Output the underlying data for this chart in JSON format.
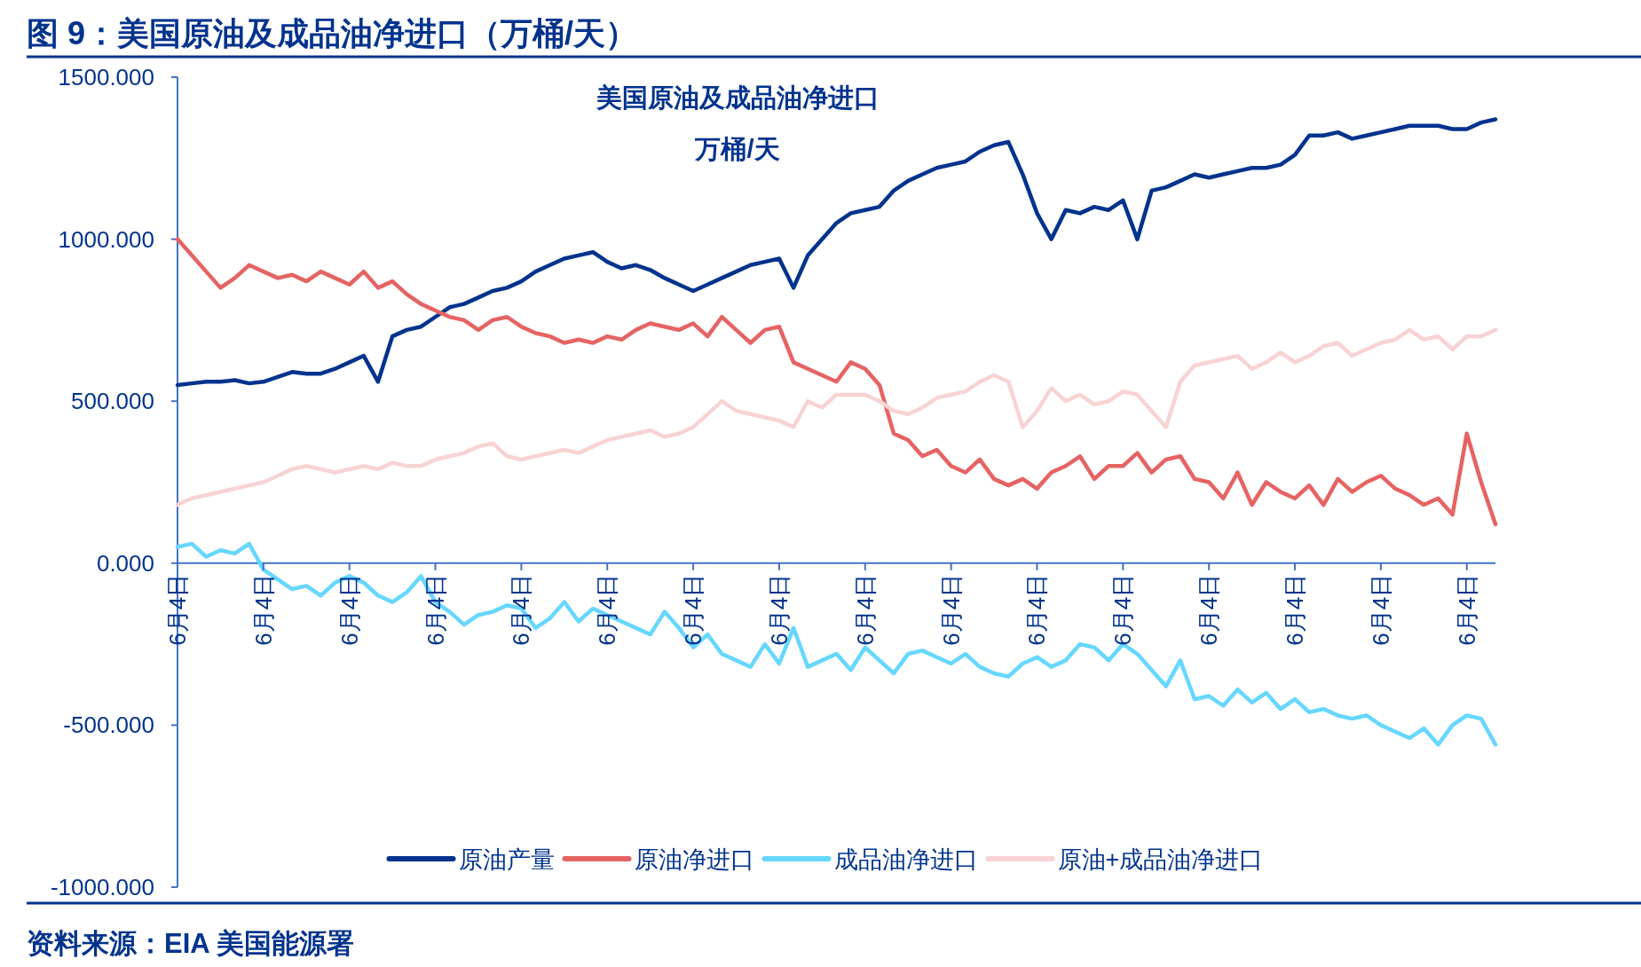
{
  "chart_data": {
    "type": "line",
    "title": "图 9：美国原油及成品油净进口（万桶/天）",
    "subtitle": "美国原油及成品油净进口",
    "ylabel": "万桶/天",
    "annotations": [
      "资料来源：EIA 美国能源署"
    ],
    "categories": [
      "6月4日",
      null,
      null,
      null,
      null,
      null,
      "6月4日",
      null,
      null,
      null,
      null,
      null,
      "6月4日",
      null,
      null,
      null,
      null,
      null,
      "6月4日",
      null,
      null,
      null,
      null,
      null,
      "6月4日",
      null,
      null,
      null,
      null,
      null,
      "6月4日",
      null,
      null,
      null,
      null,
      null,
      "6月4日",
      null,
      null,
      null,
      null,
      null,
      "6月4日",
      null,
      null,
      null,
      null,
      null,
      "6月4日",
      null,
      null,
      null,
      null,
      null,
      "6月4日",
      null,
      null,
      null,
      null,
      null,
      "6月4日",
      null,
      null,
      null,
      null,
      null,
      "6月4日",
      null,
      null,
      null,
      null,
      null,
      "6月4日",
      null,
      null,
      null,
      null,
      null,
      "6月4日",
      null,
      null,
      null,
      null,
      null,
      "6月4日",
      null,
      null,
      null,
      null,
      null,
      "6月4日",
      null,
      null
    ],
    "series": [
      {
        "name": "原油产量",
        "color": "#00338d",
        "values": [
          550,
          555,
          560,
          560,
          565,
          555,
          560,
          575,
          590,
          585,
          585,
          600,
          620,
          640,
          560,
          700,
          720,
          730,
          760,
          790,
          800,
          820,
          840,
          850,
          870,
          900,
          920,
          940,
          950,
          960,
          930,
          910,
          920,
          905,
          880,
          860,
          840,
          860,
          880,
          900,
          920,
          930,
          940,
          850,
          950,
          1000,
          1050,
          1080,
          1090,
          1100,
          1150,
          1180,
          1200,
          1220,
          1230,
          1240,
          1270,
          1290,
          1300,
          1200,
          1080,
          1000,
          1090,
          1080,
          1100,
          1090,
          1120,
          1000,
          1150,
          1160,
          1180,
          1200,
          1190,
          1200,
          1210,
          1220,
          1220,
          1230,
          1260,
          1320,
          1320,
          1330,
          1310,
          1320,
          1330,
          1340,
          1350,
          1350,
          1350,
          1340,
          1340,
          1360,
          1370
        ]
      },
      {
        "name": "原油净进口",
        "color": "#e66363",
        "values": [
          1000,
          950,
          900,
          850,
          880,
          920,
          900,
          880,
          890,
          870,
          900,
          880,
          860,
          900,
          850,
          870,
          830,
          800,
          780,
          760,
          750,
          720,
          750,
          760,
          730,
          710,
          700,
          680,
          690,
          680,
          700,
          690,
          720,
          740,
          730,
          720,
          740,
          700,
          760,
          720,
          680,
          720,
          730,
          620,
          600,
          580,
          560,
          620,
          600,
          550,
          400,
          380,
          330,
          350,
          300,
          280,
          320,
          260,
          240,
          260,
          230,
          280,
          300,
          330,
          260,
          300,
          300,
          340,
          280,
          320,
          330,
          260,
          250,
          200,
          280,
          180,
          250,
          220,
          200,
          240,
          180,
          260,
          220,
          250,
          270,
          230,
          210,
          180,
          200,
          150,
          400,
          250,
          120
        ]
      },
      {
        "name": "成品油净进口",
        "color": "#66d7fe",
        "values": [
          50,
          60,
          20,
          40,
          30,
          60,
          -20,
          -50,
          -80,
          -70,
          -100,
          -60,
          -40,
          -60,
          -100,
          -120,
          -90,
          -40,
          -120,
          -150,
          -190,
          -160,
          -150,
          -130,
          -140,
          -200,
          -170,
          -120,
          -180,
          -140,
          -160,
          -180,
          -200,
          -220,
          -150,
          -200,
          -260,
          -220,
          -280,
          -300,
          -320,
          -250,
          -310,
          -200,
          -320,
          -300,
          -280,
          -330,
          -260,
          -300,
          -340,
          -280,
          -270,
          -290,
          -310,
          -280,
          -320,
          -340,
          -350,
          -310,
          -290,
          -320,
          -300,
          -250,
          -260,
          -300,
          -250,
          -280,
          -330,
          -380,
          -300,
          -420,
          -410,
          -440,
          -390,
          -430,
          -400,
          -450,
          -420,
          -460,
          -450,
          -470,
          -480,
          -470,
          -500,
          -520,
          -540,
          -510,
          -560,
          -500,
          -470,
          -480,
          -560
        ]
      },
      {
        "name": "原油+成品油净进口",
        "color": "#f8d3d3",
        "values": [
          180,
          200,
          210,
          220,
          230,
          240,
          250,
          270,
          290,
          300,
          290,
          280,
          290,
          300,
          290,
          310,
          300,
          300,
          320,
          330,
          340,
          360,
          370,
          330,
          320,
          330,
          340,
          350,
          340,
          360,
          380,
          390,
          400,
          410,
          390,
          400,
          420,
          460,
          500,
          470,
          460,
          450,
          440,
          420,
          500,
          480,
          520,
          520,
          520,
          500,
          470,
          460,
          480,
          510,
          520,
          530,
          560,
          580,
          560,
          420,
          470,
          540,
          500,
          520,
          490,
          500,
          530,
          520,
          470,
          420,
          560,
          610,
          620,
          630,
          640,
          600,
          620,
          650,
          620,
          640,
          670,
          680,
          640,
          660,
          680,
          690,
          720,
          690,
          700,
          660,
          700,
          700,
          720
        ]
      }
    ],
    "ylim": [
      -1000,
      1500
    ],
    "yticks": [
      {
        "value": -1000,
        "label": "-1000.000"
      },
      {
        "value": -500,
        "label": "-500.000"
      },
      {
        "value": 0,
        "label": "0.000"
      },
      {
        "value": 500,
        "label": "500.000"
      },
      {
        "value": 1000,
        "label": "1000.000"
      },
      {
        "value": 1500,
        "label": "1500.000"
      }
    ],
    "legend": "bottom",
    "grid": false
  }
}
